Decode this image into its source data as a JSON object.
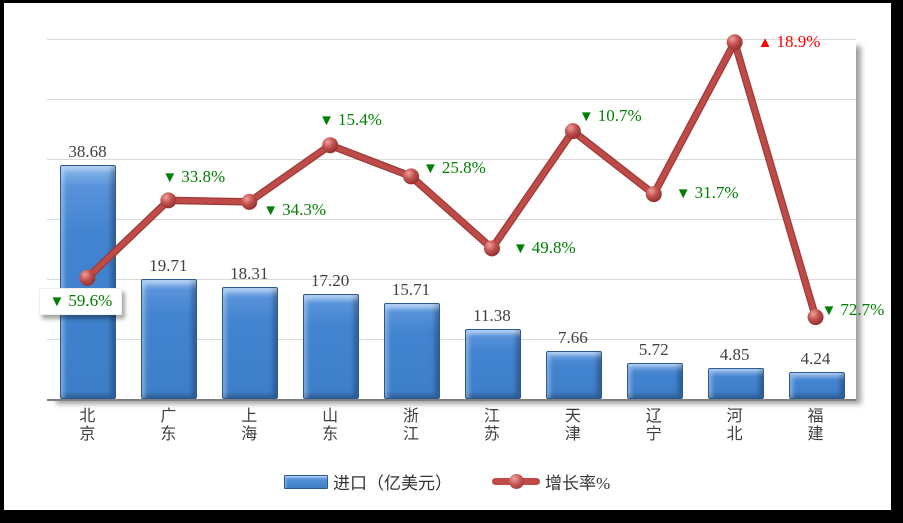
{
  "chart_data": {
    "type": "bar+line combo",
    "title": "",
    "categories": [
      "北京",
      "广东",
      "上海",
      "山东",
      "浙江",
      "江苏",
      "天津",
      "辽宁",
      "河北",
      "福建"
    ],
    "series": [
      {
        "name": "进口（亿美元）",
        "type": "bar",
        "values": [
          38.68,
          19.71,
          18.31,
          17.2,
          15.71,
          11.38,
          7.66,
          5.72,
          4.85,
          4.24
        ],
        "value_labels": [
          "38.68",
          "19.71",
          "18.31",
          "17.20",
          "15.71",
          "11.38",
          "7.66",
          "5.72",
          "4.85",
          "4.24"
        ]
      },
      {
        "name": "增长率%",
        "type": "line",
        "values": [
          -59.6,
          -33.8,
          -34.3,
          -15.4,
          -25.8,
          -49.8,
          -10.7,
          -31.7,
          18.9,
          -72.7
        ],
        "point_labels": [
          {
            "dir": "down",
            "text": "59.6%",
            "boxed": true,
            "dx": -48,
            "dy": 10
          },
          {
            "dir": "down",
            "text": "33.8%",
            "boxed": false,
            "dx": -6,
            "dy": -33
          },
          {
            "dir": "down",
            "text": "34.3%",
            "boxed": false,
            "dx": 14,
            "dy": -2
          },
          {
            "dir": "down",
            "text": "15.4%",
            "boxed": false,
            "dx": -11,
            "dy": -35
          },
          {
            "dir": "down",
            "text": "25.8%",
            "boxed": false,
            "dx": 12,
            "dy": -18
          },
          {
            "dir": "down",
            "text": "49.8%",
            "boxed": false,
            "dx": 21,
            "dy": -10
          },
          {
            "dir": "down",
            "text": "10.7%",
            "boxed": false,
            "dx": 6,
            "dy": -25
          },
          {
            "dir": "down",
            "text": "31.7%",
            "boxed": false,
            "dx": 22,
            "dy": -11
          },
          {
            "dir": "up",
            "text": "18.9%",
            "boxed": false,
            "dx": 23,
            "dy": -10
          },
          {
            "dir": "down",
            "text": "72.7%",
            "boxed": false,
            "dx": 6,
            "dy": -17
          }
        ]
      }
    ],
    "left_axis": {
      "min": 0,
      "max": 60,
      "step": 10,
      "labels_visible": false
    },
    "right_axis": {
      "min": -100,
      "max": 20,
      "step": 20,
      "labels_visible": false
    },
    "grid": true,
    "legend_position": "bottom",
    "legend": [
      {
        "label": "进口（亿美元）",
        "swatch": "bar"
      },
      {
        "label": "增长率%",
        "swatch": "line"
      }
    ],
    "arrows": {
      "down": "▼",
      "up": "▲"
    },
    "colors": {
      "bar": "#4284D0",
      "bar_edge": "#2C5A94",
      "line": "#BE4B48",
      "marker": "#C0504D",
      "down_label": "#008000",
      "up_label": "#FF0000",
      "value_label": "#3F3F3F",
      "grid": "#D9D9D9",
      "axis": "#7F7F7F",
      "background": "#FFFFFF",
      "frame": "#000000"
    }
  }
}
